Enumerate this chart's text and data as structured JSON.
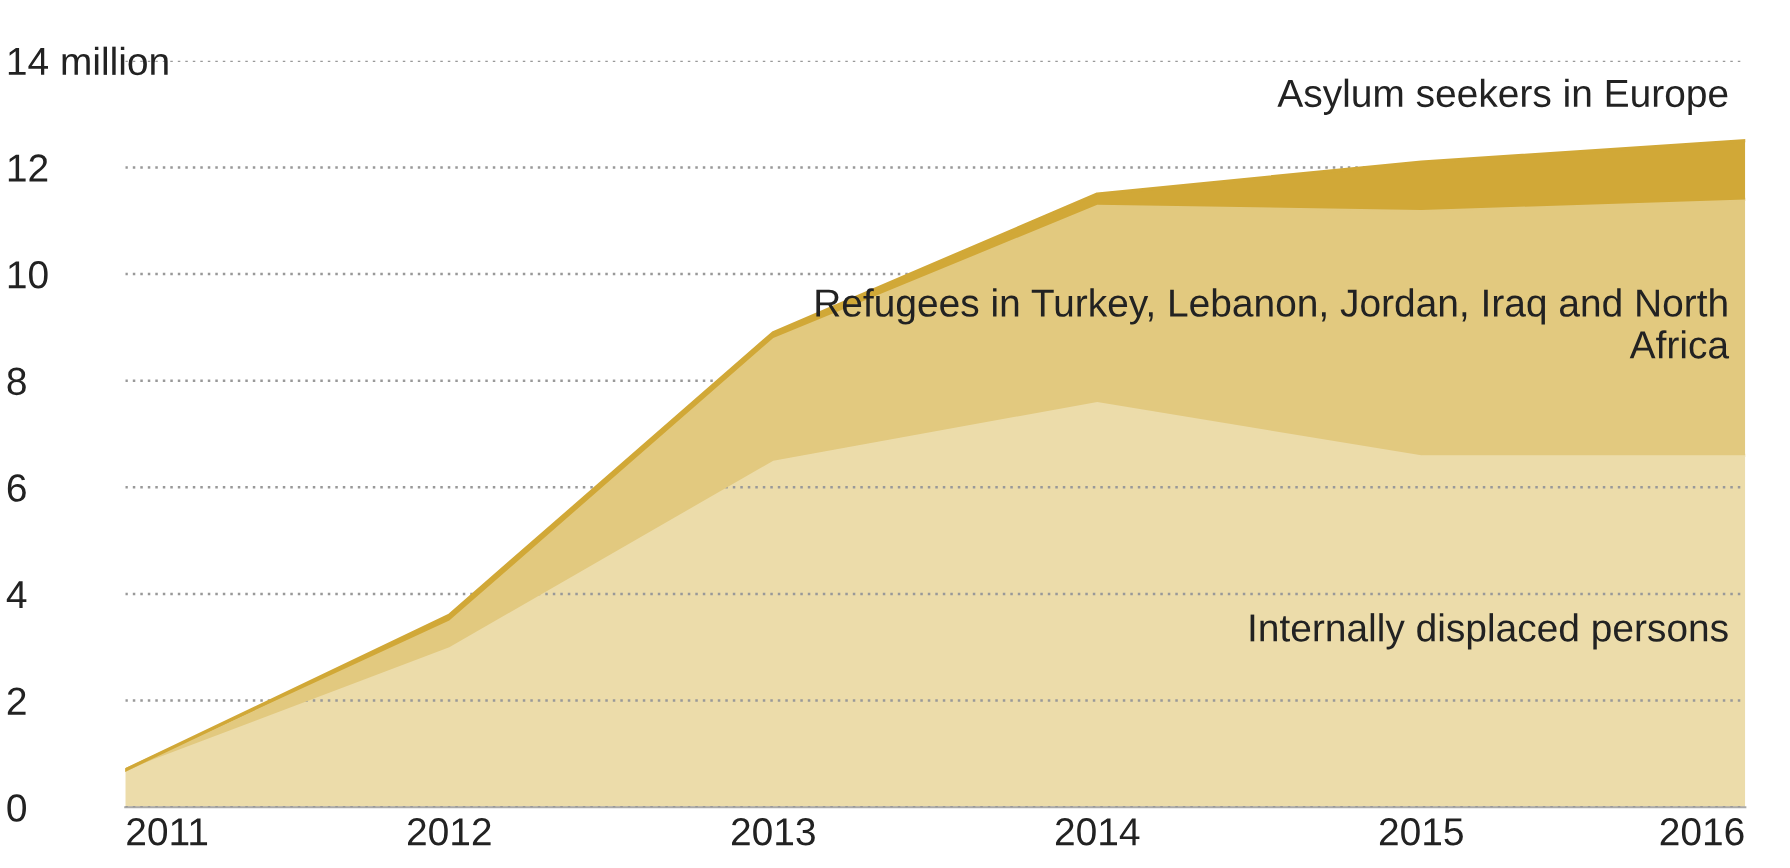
{
  "chart_data": {
    "type": "area",
    "stacked": true,
    "x": [
      2011,
      2012,
      2013,
      2014,
      2015,
      2016
    ],
    "series": [
      {
        "name": "Internally displaced persons",
        "color": "#ecdcaa",
        "values": [
          0.7,
          3.0,
          6.5,
          7.6,
          6.6,
          6.6
        ]
      },
      {
        "name": "Refugees in Turkey, Lebanon, Jordan, Iraq and North Africa",
        "color": "#e2c97f",
        "values": [
          0.0,
          0.5,
          2.3,
          3.7,
          4.6,
          4.8
        ]
      },
      {
        "name": "Asylum seekers in Europe",
        "color": "#d1a837",
        "values": [
          0.0,
          0.1,
          0.1,
          0.2,
          0.9,
          1.1
        ]
      }
    ],
    "xlim": [
      2011,
      2016
    ],
    "xticks": [
      2011,
      2012,
      2013,
      2014,
      2015,
      2016
    ],
    "ylim": [
      0,
      14
    ],
    "yticks": [
      0,
      2,
      4,
      6,
      8,
      10,
      12,
      {
        "value": 14,
        "label": "14 million"
      }
    ],
    "grid": "y",
    "line_style": "dotted"
  }
}
